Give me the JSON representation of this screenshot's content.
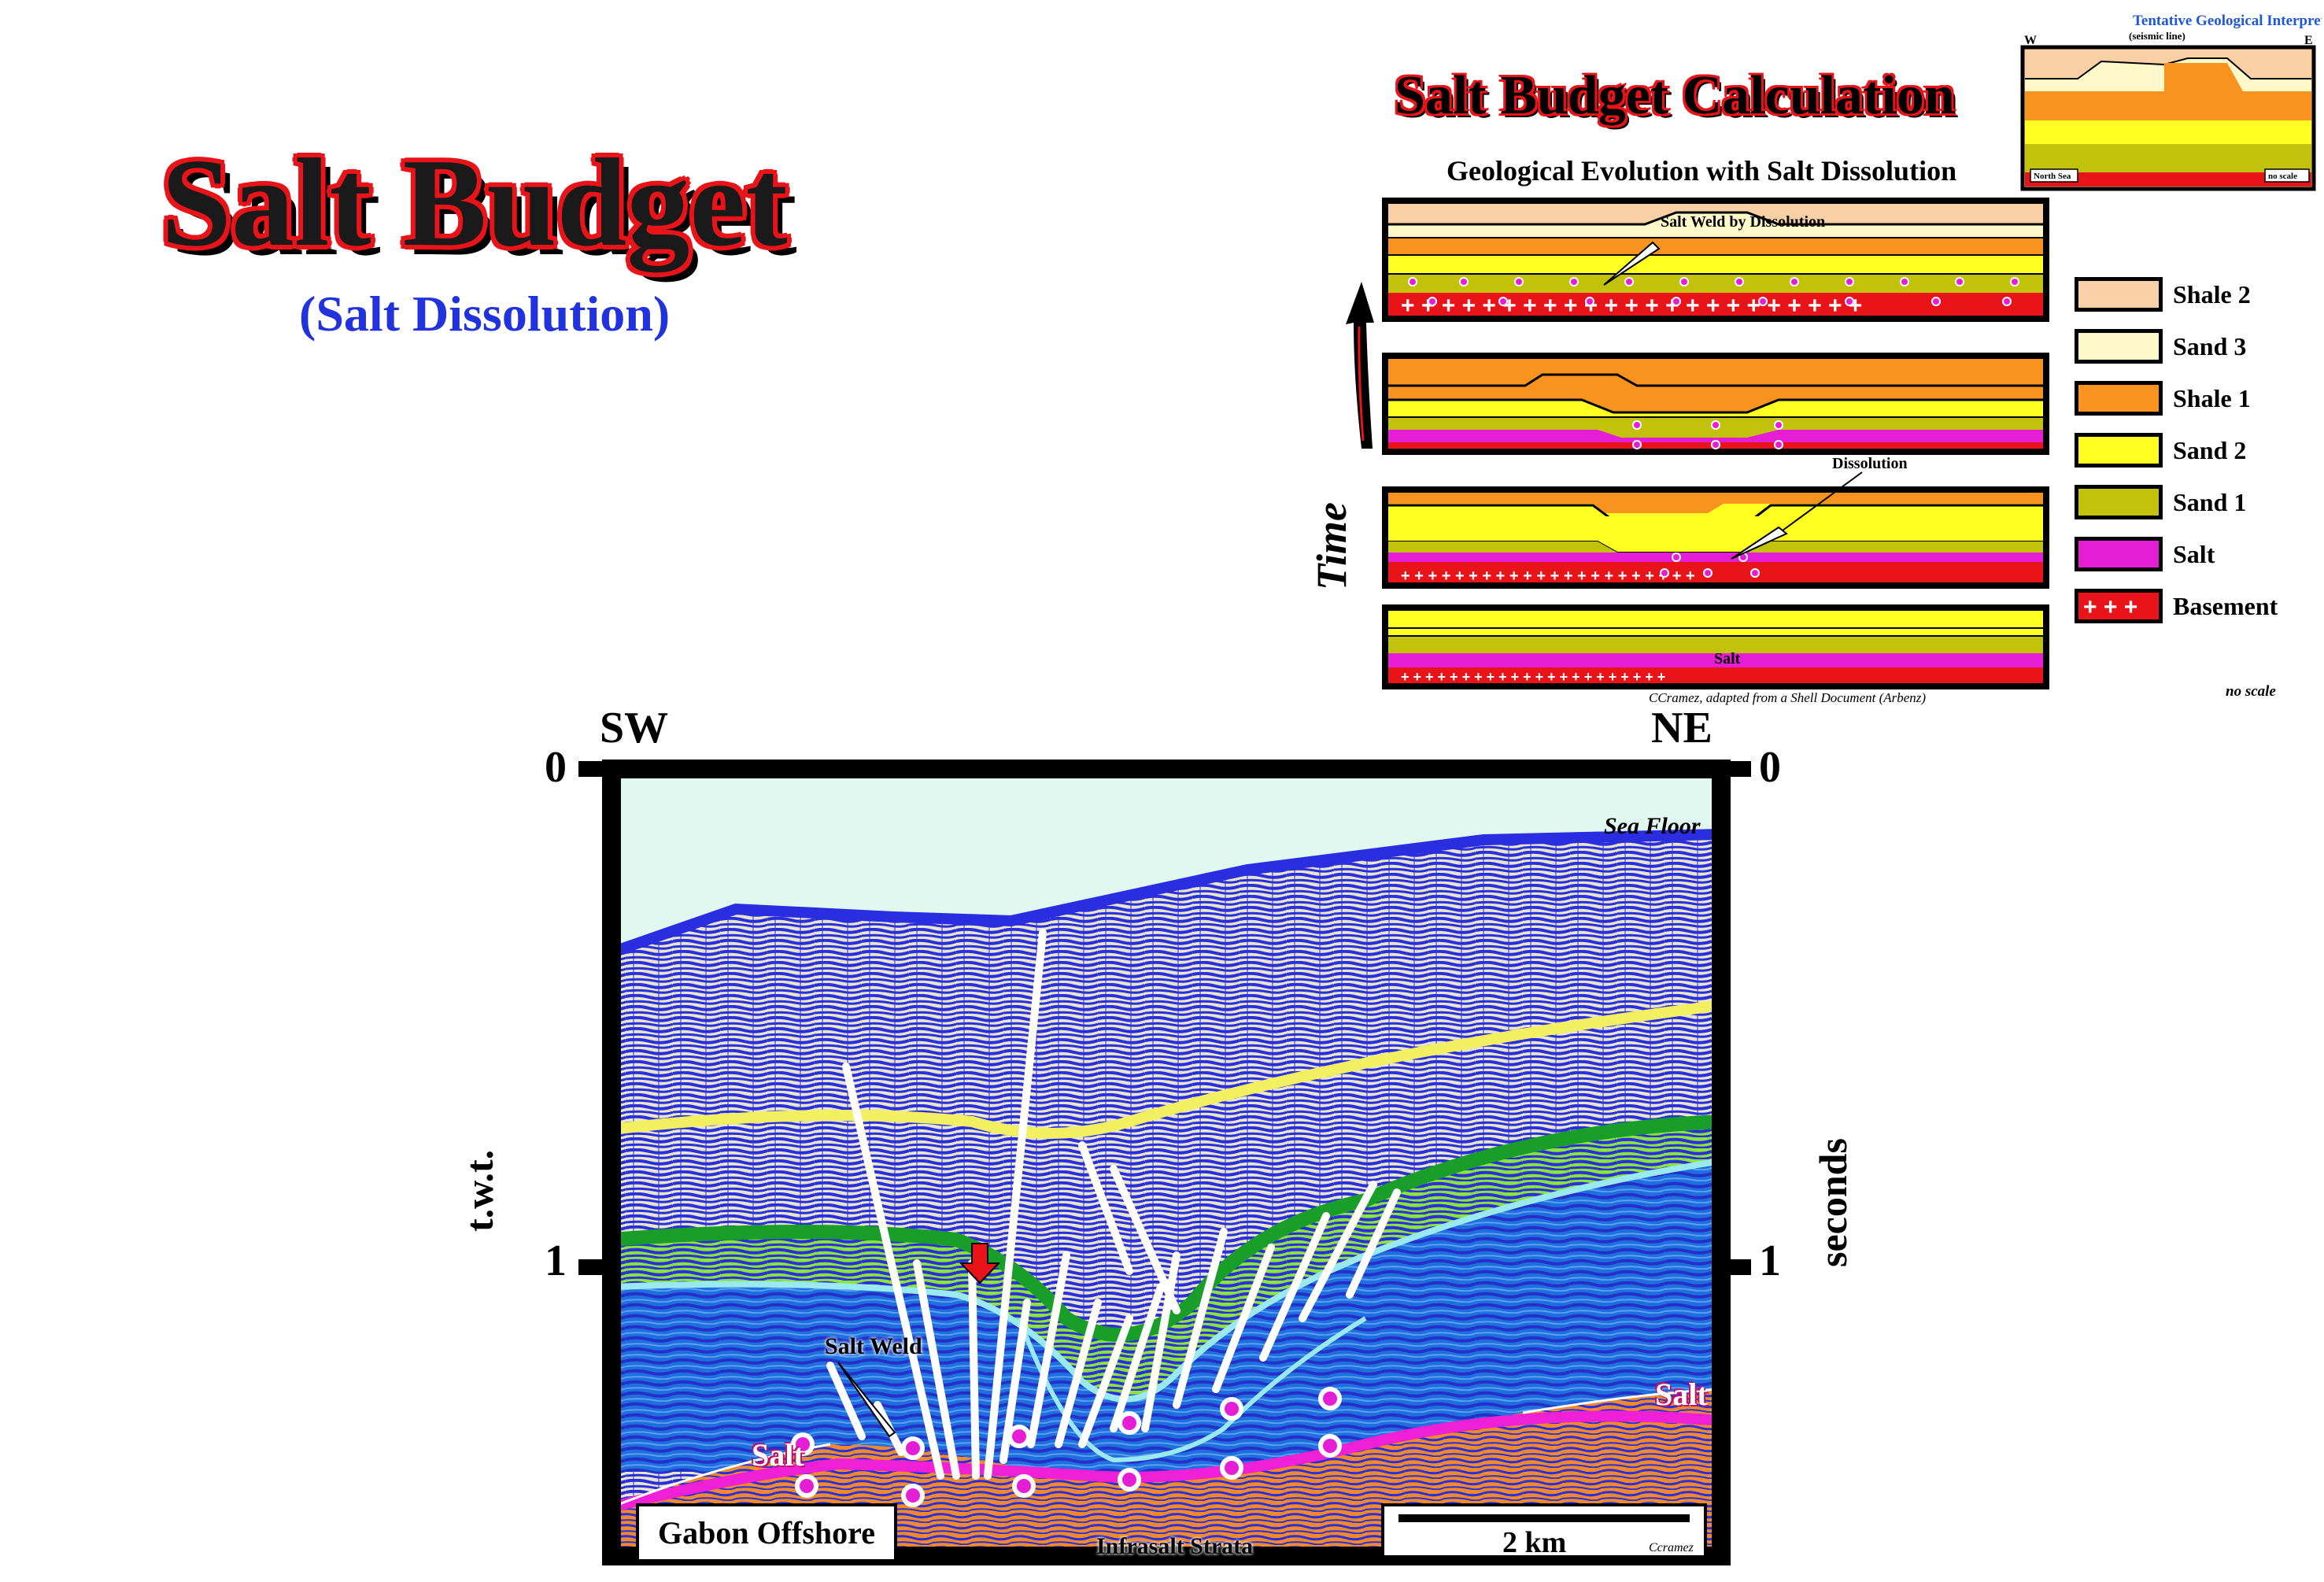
{
  "title": "Salt Budget",
  "subtitle": "(Salt Dissolution)",
  "calc": {
    "title": "Salt Budget Calculation",
    "subtitle": "Geological Evolution with Salt Dissolution",
    "time_label": "Time",
    "labels": {
      "salt_weld": "Salt Weld by Dissolution",
      "dissolution": "Dissolution",
      "salt": "Salt"
    },
    "credit": "CCramez, adapted from a Shell Document (Arbenz)",
    "no_scale": "no scale"
  },
  "inset": {
    "title": "Tentative Geological Interpretation",
    "subtitle": "(seismic line)",
    "west": "W",
    "east": "E",
    "left_tag": "North Sea",
    "right_tag": "no scale"
  },
  "legend": [
    {
      "label": "Shale 2",
      "color": "#f9cfa6"
    },
    {
      "label": "Sand 3",
      "color": "#fff8c9"
    },
    {
      "label": "Shale 1",
      "color": "#f7931e"
    },
    {
      "label": "Sand 2",
      "color": "#ffff22"
    },
    {
      "label": "Sand 1",
      "color": "#c2c20c"
    },
    {
      "label": "Salt",
      "color": "#e51ed6"
    },
    {
      "label": "Basement",
      "color": "#e8141a"
    }
  ],
  "seismic": {
    "sw": "SW",
    "ne": "NE",
    "tick_0_left": "0",
    "tick_1_left": "1",
    "tick_0_right": "0",
    "tick_1_right": "1",
    "left_axis": "t.w.t.",
    "right_axis": "seconds",
    "sea_floor": "Sea Floor",
    "salt_weld": "Salt Weld",
    "salt_left": "Salt",
    "salt_right": "Salt",
    "infrasalt": "Infrasalt Strata",
    "location": "Gabon Offshore",
    "scale": "2 km",
    "author": "Ccramez"
  },
  "colors": {
    "title_outline": "#e8141a",
    "subtitle_blue": "#2233dd",
    "water": "#e0f8f0",
    "seismic_blue": "#2a2ee0",
    "seismic_light": "#e8e6c8",
    "yellow_horizon": "#f2f060",
    "green_horizon": "#1a9e2a",
    "lime": "#8be43a",
    "cyan_horizon": "#9ae8f0",
    "deep_blue": "#1f6fe0",
    "salt_magenta": "#f020d8",
    "infrasalt_orange": "#f08a2a"
  }
}
